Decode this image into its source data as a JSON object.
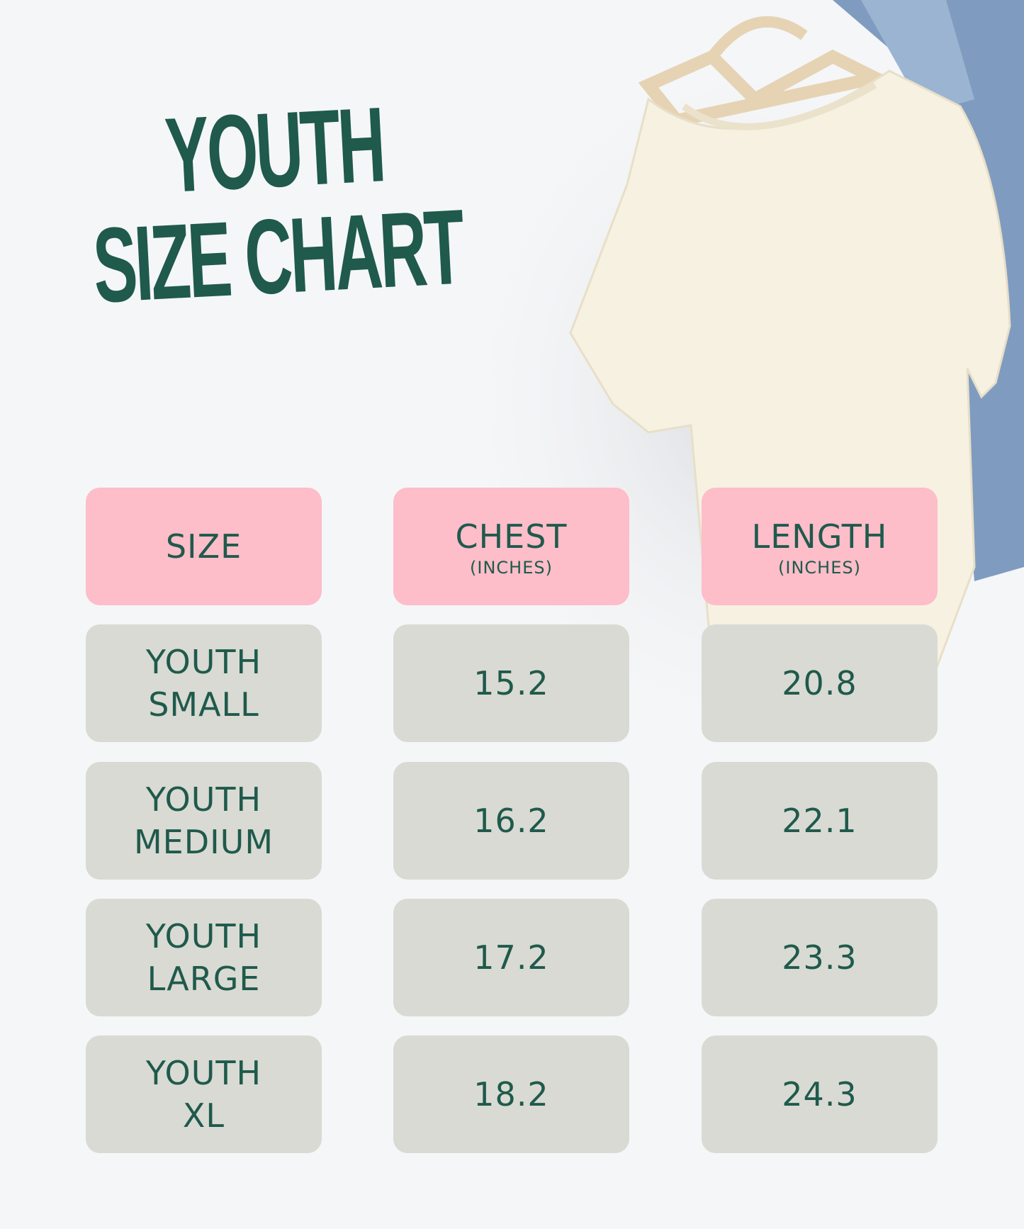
{
  "title": {
    "line1": "YOUTH",
    "line2": "SIZE CHART"
  },
  "colors": {
    "header_bg": "#fdbdc9",
    "cell_bg": "#d9dad3",
    "text": "#1f5a4c",
    "background": "#f5f6f8"
  },
  "table": {
    "headers": [
      {
        "label": "SIZE",
        "unit": ""
      },
      {
        "label": "CHEST",
        "unit": "(INCHES)"
      },
      {
        "label": "LENGTH",
        "unit": "(INCHES)"
      }
    ],
    "rows": [
      {
        "size_line1": "YOUTH",
        "size_line2": "SMALL",
        "chest": "15.2",
        "length": "20.8"
      },
      {
        "size_line1": "YOUTH",
        "size_line2": "MEDIUM",
        "chest": "16.2",
        "length": "22.1"
      },
      {
        "size_line1": "YOUTH",
        "size_line2": "LARGE",
        "chest": "17.2",
        "length": "23.3"
      },
      {
        "size_line1": "YOUTH",
        "size_line2": "XL",
        "chest": "18.2",
        "length": "24.3"
      }
    ]
  }
}
